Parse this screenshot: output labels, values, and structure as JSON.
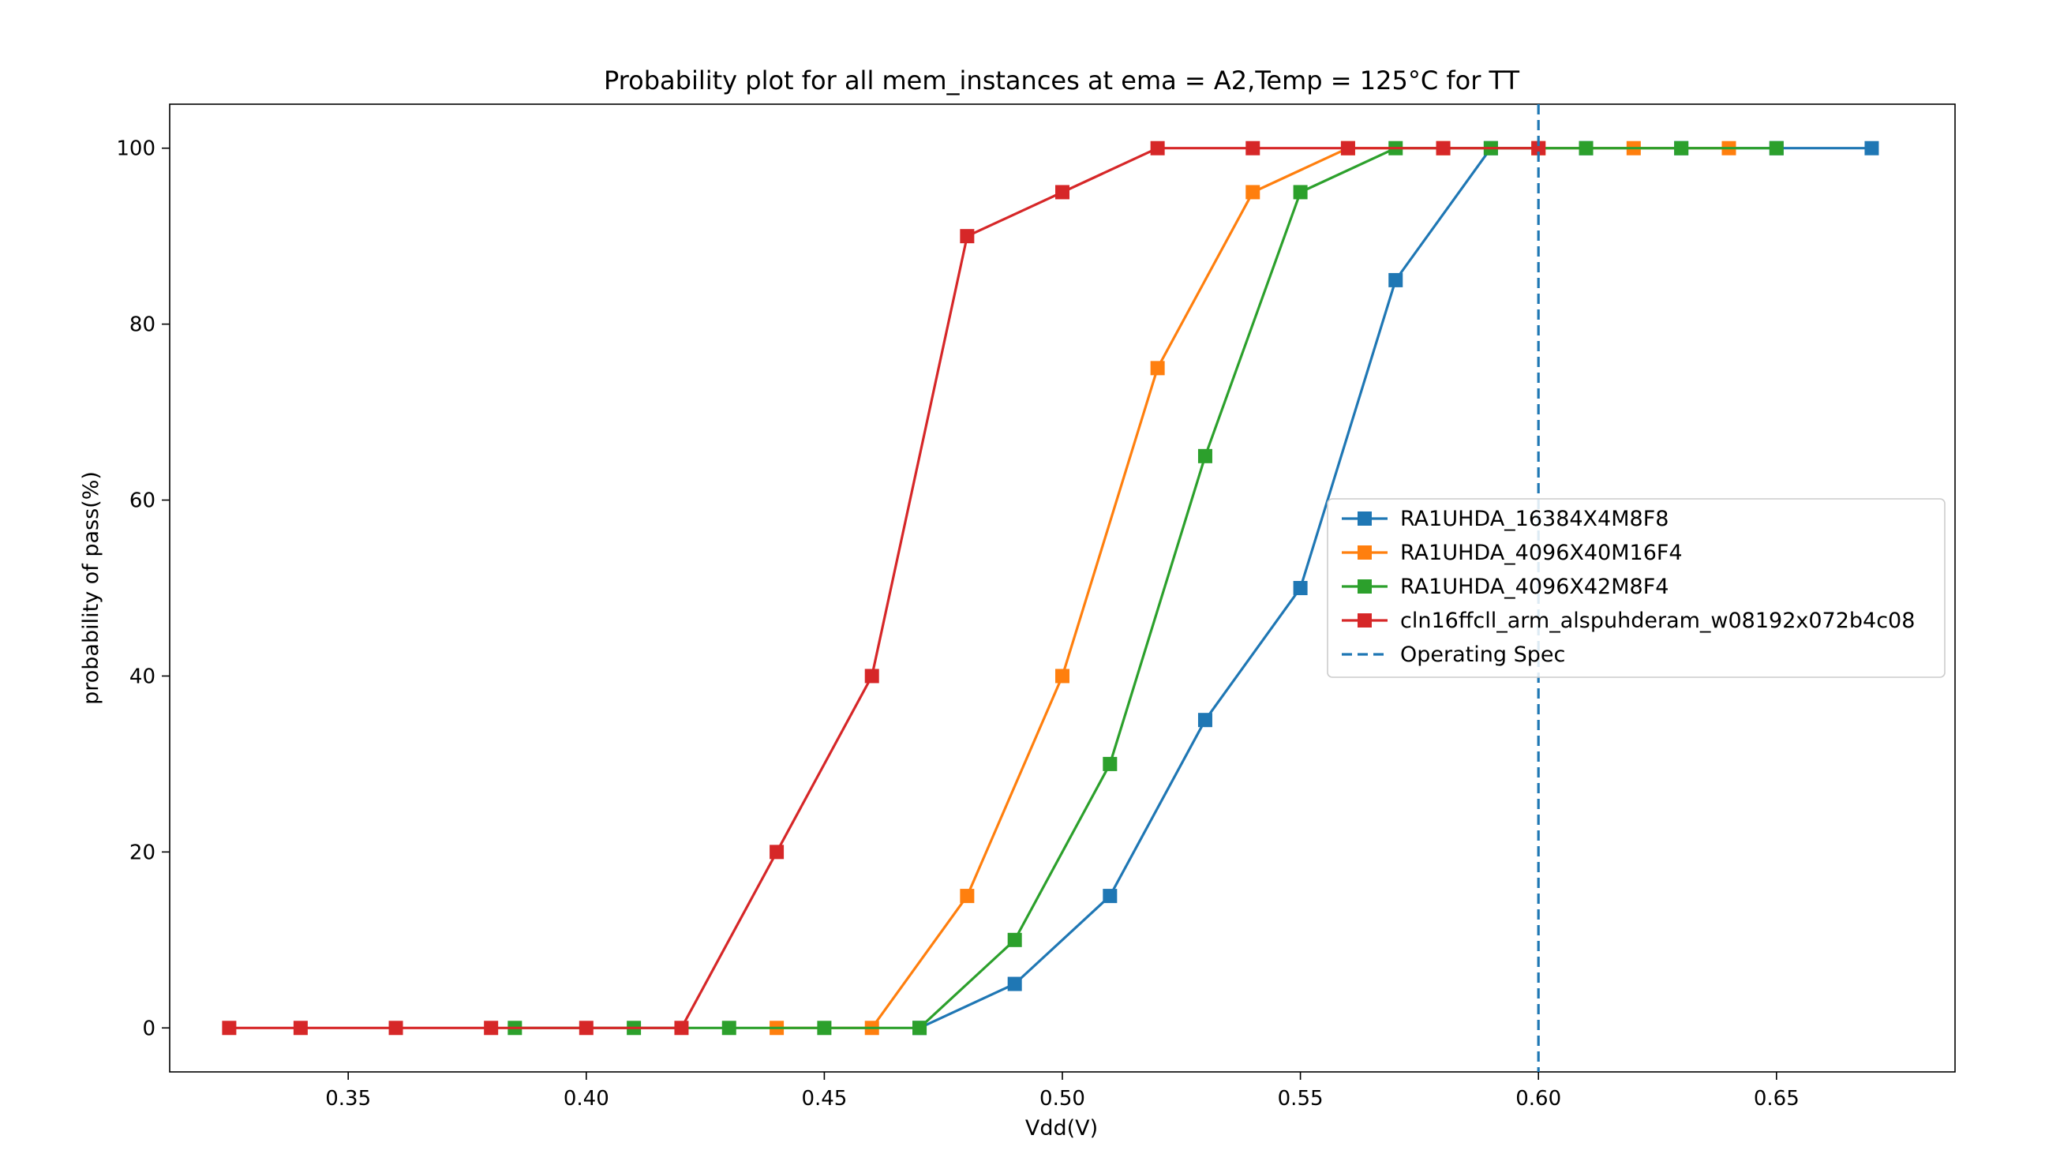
{
  "chart_data": {
    "type": "line",
    "title": "Probability plot for all mem_instances at ema = A2,Temp = 125°C for TT",
    "xlabel": "Vdd(V)",
    "ylabel": "probability of pass(%)",
    "xlim": [
      0.3125,
      0.6875
    ],
    "ylim": [
      -5,
      105
    ],
    "xticks": [
      "0.35",
      "0.40",
      "0.45",
      "0.50",
      "0.55",
      "0.60",
      "0.65"
    ],
    "yticks": [
      "0",
      "20",
      "40",
      "60",
      "80",
      "100"
    ],
    "grid": false,
    "legend_position": "center-right",
    "series": [
      {
        "name": "RA1UHDA_16384X4M8F8",
        "color": "#1f77b4",
        "marker": "square",
        "x": [
          0.47,
          0.49,
          0.51,
          0.53,
          0.55,
          0.57,
          0.59,
          0.61,
          0.63,
          0.65,
          0.67
        ],
        "y": [
          0,
          5,
          15,
          35,
          50,
          85,
          100,
          100,
          100,
          100,
          100
        ]
      },
      {
        "name": "RA1UHDA_4096X40M16F4",
        "color": "#ff7f0e",
        "marker": "square",
        "x": [
          0.44,
          0.46,
          0.48,
          0.5,
          0.52,
          0.54,
          0.56,
          0.58,
          0.6,
          0.62,
          0.64
        ],
        "y": [
          0,
          0,
          15,
          40,
          75,
          95,
          100,
          100,
          100,
          100,
          100
        ]
      },
      {
        "name": "RA1UHDA_4096X42M8F4",
        "color": "#2ca02c",
        "marker": "square",
        "x": [
          0.385,
          0.41,
          0.43,
          0.45,
          0.47,
          0.49,
          0.51,
          0.53,
          0.55,
          0.57,
          0.59,
          0.61,
          0.63,
          0.65
        ],
        "y": [
          0,
          0,
          0,
          0,
          0,
          10,
          30,
          65,
          95,
          100,
          100,
          100,
          100,
          100
        ]
      },
      {
        "name": "cln16ffcll_arm_alspuhderam_w08192x072b4c08",
        "color": "#d62728",
        "marker": "square",
        "x": [
          0.325,
          0.34,
          0.36,
          0.38,
          0.4,
          0.42,
          0.44,
          0.46,
          0.48,
          0.5,
          0.52,
          0.54,
          0.56,
          0.58,
          0.6
        ],
        "y": [
          0,
          0,
          0,
          0,
          0,
          0,
          20,
          40,
          90,
          95,
          100,
          100,
          100,
          100,
          100
        ]
      }
    ],
    "reference_lines": [
      {
        "name": "Operating Spec",
        "orientation": "vertical",
        "x": 0.6,
        "color": "#1f77b4",
        "style": "dashed"
      }
    ]
  }
}
